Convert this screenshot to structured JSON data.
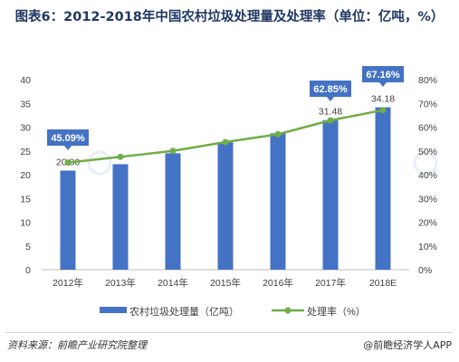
{
  "title": "图表6：2012-2018年中国农村垃圾处理量及处理率（单位：亿吨，%）",
  "source": "资料来源：前瞻产业研究院整理",
  "credit": "@前瞻经济学人APP",
  "colors": {
    "bar": "#4472c4",
    "line": "#70ad47",
    "callout": "#4472c4",
    "title": "#1f3864"
  },
  "chart_data": {
    "type": "bar",
    "categories": [
      "2012年",
      "2013年",
      "2014年",
      "2015年",
      "2016年",
      "2017年",
      "2018E"
    ],
    "series": [
      {
        "name": "农村垃圾处理量（亿吨）",
        "type": "bar",
        "axis": "left",
        "values": [
          20.86,
          22.2,
          24.5,
          26.8,
          28.7,
          31.48,
          34.18
        ],
        "data_labels": [
          "20.86",
          "",
          "",
          "",
          "",
          "31.48",
          "34.18"
        ]
      },
      {
        "name": "处理率（%）",
        "type": "line",
        "axis": "right",
        "values": [
          45.09,
          47.5,
          50.0,
          53.7,
          57.0,
          62.85,
          67.16
        ],
        "callouts": [
          "45.09%",
          "",
          "",
          "",
          "",
          "62.85%",
          "67.16%"
        ]
      }
    ],
    "left_axis": {
      "ylim": [
        0,
        40
      ],
      "ticks": [
        "0",
        "5",
        "10",
        "15",
        "20",
        "25",
        "30",
        "35",
        "40"
      ]
    },
    "right_axis": {
      "ylim": [
        0,
        80
      ],
      "ticks": [
        "0%",
        "10%",
        "20%",
        "30%",
        "40%",
        "50%",
        "60%",
        "70%",
        "80%"
      ]
    },
    "legend_position": "bottom",
    "grid": false
  }
}
